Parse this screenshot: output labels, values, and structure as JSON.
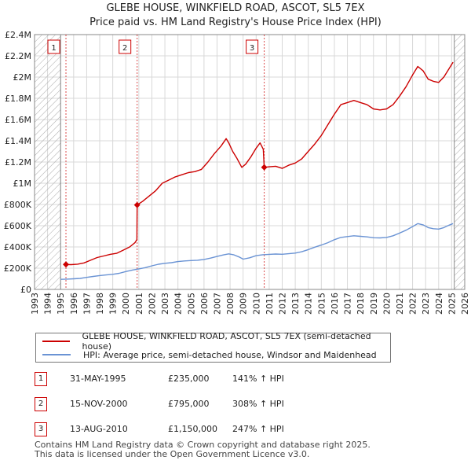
{
  "title": {
    "line1": "GLEBE HOUSE, WINKFIELD ROAD, ASCOT, SL5 7EX",
    "line2": "Price paid vs. HM Land Registry's House Price Index (HPI)"
  },
  "colors": {
    "red": "#cc0000",
    "blue": "#6a93d4",
    "hatch": "#999999",
    "grid": "#d8d8d8"
  },
  "chart_data": {
    "type": "line",
    "title": "Price paid vs. HM Land Registry's House Price Index (HPI)",
    "xlabel": "",
    "ylabel": "",
    "xlim": [
      1993,
      2026
    ],
    "ylim": [
      0,
      2400000
    ],
    "grid": true,
    "x_ticks": [
      "1993",
      "1994",
      "1995",
      "1996",
      "1997",
      "1998",
      "1999",
      "2000",
      "2001",
      "2002",
      "2003",
      "2004",
      "2005",
      "2006",
      "2007",
      "2008",
      "2009",
      "2010",
      "2011",
      "2012",
      "2013",
      "2014",
      "2015",
      "2016",
      "2017",
      "2018",
      "2019",
      "2020",
      "2021",
      "2022",
      "2023",
      "2024",
      "2025",
      "2026"
    ],
    "y_ticks": [
      {
        "value": 0,
        "label": "£0"
      },
      {
        "value": 200000,
        "label": "£200K"
      },
      {
        "value": 400000,
        "label": "£400K"
      },
      {
        "value": 600000,
        "label": "£600K"
      },
      {
        "value": 800000,
        "label": "£800K"
      },
      {
        "value": 1000000,
        "label": "£1M"
      },
      {
        "value": 1200000,
        "label": "£1.2M"
      },
      {
        "value": 1400000,
        "label": "£1.4M"
      },
      {
        "value": 1600000,
        "label": "£1.6M"
      },
      {
        "value": 1800000,
        "label": "£1.8M"
      },
      {
        "value": 2000000,
        "label": "£2M"
      },
      {
        "value": 2200000,
        "label": "£2.2M"
      },
      {
        "value": 2400000,
        "label": "£2.4M"
      }
    ],
    "hatched_ranges": [
      [
        1993,
        1995.0
      ],
      [
        2025.2,
        2026
      ]
    ],
    "series": [
      {
        "name": "GLEBE HOUSE, WINKFIELD ROAD, ASCOT, SL5 7EX (semi-detached house)",
        "color": "#cc0000",
        "points": [
          [
            1995.41,
            235000
          ],
          [
            1995.8,
            233000
          ],
          [
            1996.3,
            238000
          ],
          [
            1996.8,
            250000
          ],
          [
            1997.3,
            275000
          ],
          [
            1997.8,
            300000
          ],
          [
            1998.3,
            315000
          ],
          [
            1998.8,
            330000
          ],
          [
            1999.3,
            340000
          ],
          [
            1999.8,
            370000
          ],
          [
            2000.3,
            400000
          ],
          [
            2000.7,
            440000
          ],
          [
            2000.85,
            470000
          ],
          [
            2000.87,
            795000
          ],
          [
            2001.3,
            830000
          ],
          [
            2001.8,
            880000
          ],
          [
            2002.3,
            930000
          ],
          [
            2002.8,
            1000000
          ],
          [
            2003.3,
            1030000
          ],
          [
            2003.8,
            1060000
          ],
          [
            2004.3,
            1080000
          ],
          [
            2004.8,
            1100000
          ],
          [
            2005.3,
            1110000
          ],
          [
            2005.8,
            1130000
          ],
          [
            2006.3,
            1200000
          ],
          [
            2006.8,
            1280000
          ],
          [
            2007.3,
            1350000
          ],
          [
            2007.7,
            1420000
          ],
          [
            2007.9,
            1380000
          ],
          [
            2008.2,
            1300000
          ],
          [
            2008.5,
            1240000
          ],
          [
            2008.9,
            1150000
          ],
          [
            2009.2,
            1180000
          ],
          [
            2009.6,
            1250000
          ],
          [
            2010.0,
            1330000
          ],
          [
            2010.3,
            1380000
          ],
          [
            2010.55,
            1320000
          ],
          [
            2010.62,
            1150000
          ],
          [
            2011.0,
            1155000
          ],
          [
            2011.5,
            1160000
          ],
          [
            2012.0,
            1140000
          ],
          [
            2012.5,
            1170000
          ],
          [
            2013.0,
            1190000
          ],
          [
            2013.5,
            1230000
          ],
          [
            2014.0,
            1300000
          ],
          [
            2014.5,
            1370000
          ],
          [
            2015.0,
            1450000
          ],
          [
            2015.5,
            1550000
          ],
          [
            2016.0,
            1650000
          ],
          [
            2016.5,
            1740000
          ],
          [
            2017.0,
            1760000
          ],
          [
            2017.5,
            1780000
          ],
          [
            2018.0,
            1760000
          ],
          [
            2018.5,
            1740000
          ],
          [
            2019.0,
            1700000
          ],
          [
            2019.5,
            1690000
          ],
          [
            2020.0,
            1700000
          ],
          [
            2020.5,
            1740000
          ],
          [
            2021.0,
            1820000
          ],
          [
            2021.5,
            1910000
          ],
          [
            2022.0,
            2020000
          ],
          [
            2022.4,
            2100000
          ],
          [
            2022.8,
            2060000
          ],
          [
            2023.2,
            1980000
          ],
          [
            2023.6,
            1960000
          ],
          [
            2024.0,
            1950000
          ],
          [
            2024.4,
            2000000
          ],
          [
            2024.8,
            2080000
          ],
          [
            2025.1,
            2140000
          ]
        ]
      },
      {
        "name": "HPI: Average price, semi-detached house, Windsor and Maidenhead",
        "color": "#6a93d4",
        "points": [
          [
            1995.0,
            95000
          ],
          [
            1995.5,
            97000
          ],
          [
            1996.0,
            100000
          ],
          [
            1996.5,
            104000
          ],
          [
            1997.0,
            113000
          ],
          [
            1997.5,
            122000
          ],
          [
            1998.0,
            130000
          ],
          [
            1998.5,
            136000
          ],
          [
            1999.0,
            142000
          ],
          [
            1999.5,
            152000
          ],
          [
            2000.0,
            168000
          ],
          [
            2000.5,
            182000
          ],
          [
            2001.0,
            193000
          ],
          [
            2001.5,
            205000
          ],
          [
            2002.0,
            222000
          ],
          [
            2002.5,
            237000
          ],
          [
            2003.0,
            246000
          ],
          [
            2003.5,
            252000
          ],
          [
            2004.0,
            262000
          ],
          [
            2004.5,
            268000
          ],
          [
            2005.0,
            272000
          ],
          [
            2005.5,
            275000
          ],
          [
            2006.0,
            282000
          ],
          [
            2006.5,
            295000
          ],
          [
            2007.0,
            310000
          ],
          [
            2007.5,
            325000
          ],
          [
            2007.9,
            335000
          ],
          [
            2008.3,
            325000
          ],
          [
            2008.7,
            305000
          ],
          [
            2009.0,
            285000
          ],
          [
            2009.5,
            298000
          ],
          [
            2010.0,
            318000
          ],
          [
            2010.5,
            327000
          ],
          [
            2011.0,
            330000
          ],
          [
            2011.5,
            333000
          ],
          [
            2012.0,
            331000
          ],
          [
            2012.5,
            336000
          ],
          [
            2013.0,
            342000
          ],
          [
            2013.5,
            355000
          ],
          [
            2014.0,
            375000
          ],
          [
            2014.5,
            398000
          ],
          [
            2015.0,
            418000
          ],
          [
            2015.5,
            440000
          ],
          [
            2016.0,
            468000
          ],
          [
            2016.5,
            490000
          ],
          [
            2017.0,
            498000
          ],
          [
            2017.5,
            505000
          ],
          [
            2018.0,
            500000
          ],
          [
            2018.5,
            495000
          ],
          [
            2019.0,
            487000
          ],
          [
            2019.5,
            485000
          ],
          [
            2020.0,
            490000
          ],
          [
            2020.5,
            505000
          ],
          [
            2021.0,
            530000
          ],
          [
            2021.5,
            558000
          ],
          [
            2022.0,
            592000
          ],
          [
            2022.4,
            620000
          ],
          [
            2022.8,
            608000
          ],
          [
            2023.2,
            582000
          ],
          [
            2023.6,
            572000
          ],
          [
            2024.0,
            568000
          ],
          [
            2024.4,
            582000
          ],
          [
            2024.8,
            605000
          ],
          [
            2025.1,
            620000
          ]
        ]
      }
    ],
    "sales": [
      {
        "label": "1",
        "x": 1995.41,
        "y": 235000
      },
      {
        "label": "2",
        "x": 2000.87,
        "y": 795000
      },
      {
        "label": "3",
        "x": 2010.62,
        "y": 1150000
      }
    ]
  },
  "legend": {
    "property": "GLEBE HOUSE, WINKFIELD ROAD, ASCOT, SL5 7EX (semi-detached house)",
    "hpi": "HPI: Average price, semi-detached house, Windsor and Maidenhead"
  },
  "sales_table": [
    {
      "num": "1",
      "date": "31-MAY-1995",
      "price": "£235,000",
      "hpi": "141% ↑ HPI"
    },
    {
      "num": "2",
      "date": "15-NOV-2000",
      "price": "£795,000",
      "hpi": "308% ↑ HPI"
    },
    {
      "num": "3",
      "date": "13-AUG-2010",
      "price": "£1,150,000",
      "hpi": "247% ↑ HPI"
    }
  ],
  "footer": {
    "line1": "Contains HM Land Registry data © Crown copyright and database right 2025.",
    "line2": "This data is licensed under the Open Government Licence v3.0."
  }
}
